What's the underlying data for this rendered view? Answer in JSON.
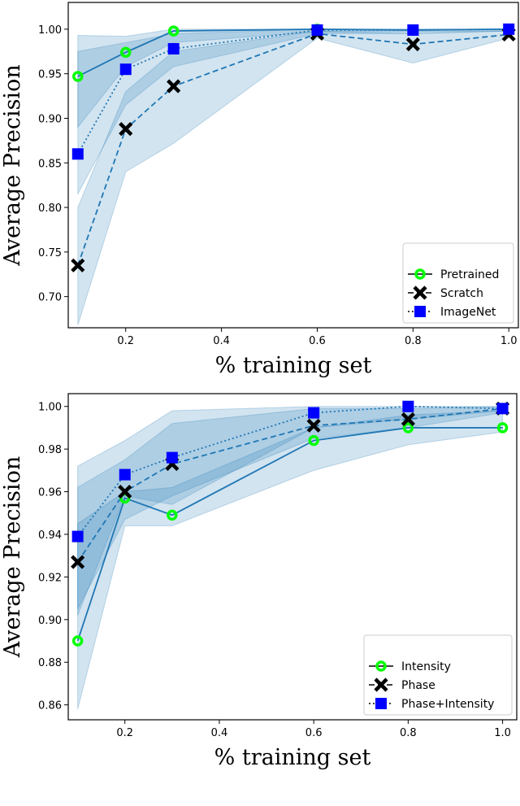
{
  "chart_data": [
    {
      "type": "line",
      "xlabel": "% training set",
      "ylabel": "Average Precision",
      "x": [
        0.1,
        0.2,
        0.3,
        0.6,
        0.8,
        1.0
      ],
      "xticks": [
        "0.2",
        "0.4",
        "0.6",
        "0.8",
        "1.0"
      ],
      "yticks": [
        "0.70",
        "0.75",
        "0.80",
        "0.85",
        "0.90",
        "0.95",
        "1.00"
      ],
      "xlim": [
        0.08,
        1.02
      ],
      "ylim": [
        0.665,
        1.03
      ],
      "legend_position": "lower-right",
      "grid": false,
      "series": [
        {
          "name": "Pretrained",
          "marker": "circle",
          "line": "solid",
          "values": [
            0.947,
            0.974,
            0.998,
            1.0,
            0.999,
            1.0
          ],
          "band_upper": [
            0.993,
            0.992,
            1.0,
            1.0,
            1.0,
            1.0
          ],
          "band_lower": [
            0.89,
            0.958,
            0.985,
            0.997,
            0.997,
            0.998
          ]
        },
        {
          "name": "Scratch",
          "marker": "x",
          "line": "dashed",
          "values": [
            0.735,
            0.888,
            0.936,
            0.995,
            0.983,
            0.994
          ],
          "band_upper": [
            0.8,
            0.93,
            0.975,
            0.998,
            0.995,
            0.998
          ],
          "band_lower": [
            0.668,
            0.84,
            0.872,
            0.99,
            0.962,
            0.99
          ]
        },
        {
          "name": "ImageNet",
          "marker": "square",
          "line": "dotted",
          "values": [
            0.86,
            0.955,
            0.978,
            0.999,
            0.999,
            1.0
          ],
          "band_upper": [
            0.975,
            0.985,
            0.995,
            1.0,
            1.0,
            1.0
          ],
          "band_lower": [
            0.815,
            0.915,
            0.958,
            0.995,
            0.995,
            0.998
          ]
        }
      ]
    },
    {
      "type": "line",
      "xlabel": "% training set",
      "ylabel": "Average Precision",
      "x": [
        0.1,
        0.2,
        0.3,
        0.6,
        0.8,
        1.0
      ],
      "xticks": [
        "0.2",
        "0.4",
        "0.6",
        "0.8",
        "1.0"
      ],
      "yticks": [
        "0.86",
        "0.88",
        "0.90",
        "0.92",
        "0.94",
        "0.96",
        "0.98",
        "1.00"
      ],
      "xlim": [
        0.08,
        1.03
      ],
      "ylim": [
        0.853,
        1.006
      ],
      "legend_position": "lower-right",
      "grid": false,
      "series": [
        {
          "name": "Intensity",
          "marker": "circle",
          "line": "solid",
          "values": [
            0.89,
            0.957,
            0.949,
            0.984,
            0.99,
            0.99
          ],
          "band_upper": [
            0.945,
            0.96,
            0.962,
            0.99,
            0.996,
            0.998
          ],
          "band_lower": [
            0.858,
            0.944,
            0.944,
            0.97,
            0.982,
            0.988
          ]
        },
        {
          "name": "Phase",
          "marker": "x",
          "line": "dashed",
          "values": [
            0.927,
            0.96,
            0.973,
            0.991,
            0.994,
            0.999
          ],
          "band_upper": [
            0.962,
            0.975,
            0.992,
            0.999,
            0.999,
            1.0
          ],
          "band_lower": [
            0.905,
            0.947,
            0.958,
            0.985,
            0.99,
            0.997
          ]
        },
        {
          "name": "Phase+Intensity",
          "marker": "square",
          "line": "dotted",
          "values": [
            0.939,
            0.968,
            0.976,
            0.997,
            1.0,
            0.999
          ],
          "band_upper": [
            0.972,
            0.984,
            0.998,
            1.0,
            1.0,
            1.0
          ],
          "band_lower": [
            0.902,
            0.958,
            0.954,
            0.99,
            0.994,
            0.998
          ]
        }
      ]
    }
  ],
  "colors": {
    "line": "#1f77b4",
    "band": "#1f77b4",
    "circle_marker": "#00ff00",
    "x_marker": "#000000",
    "square_marker": "#0000ff"
  }
}
